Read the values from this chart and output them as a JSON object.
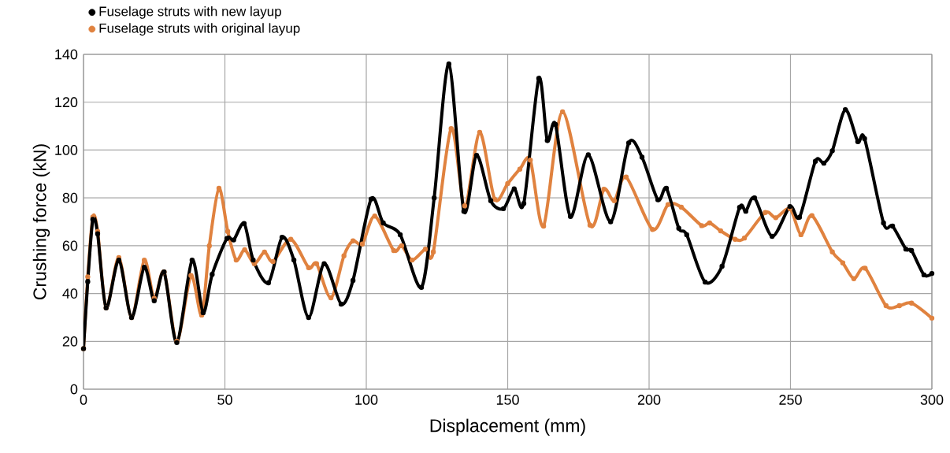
{
  "chart_data": {
    "type": "line",
    "xlabel": "Displacement (mm)",
    "ylabel": "Crushing force (kN)",
    "xlim": [
      0,
      300
    ],
    "ylim": [
      0,
      140
    ],
    "xticks": [
      0,
      50,
      100,
      150,
      200,
      250,
      300
    ],
    "yticks": [
      0,
      20,
      40,
      60,
      80,
      100,
      120,
      140
    ],
    "grid": true,
    "legend": "top left",
    "marker": "circle",
    "line_style": "solid",
    "series": [
      {
        "name": "Fuselage struts with new layup",
        "color": "#000000",
        "x": [
          0,
          1.5,
          3.3,
          5,
          8,
          12.5,
          17,
          21.5,
          25,
          28.5,
          33,
          38.4,
          42.3,
          45.5,
          50.7,
          53.1,
          56.8,
          60,
          65.4,
          70.2,
          74.4,
          79.6,
          85.1,
          91.1,
          95.3,
          101.7,
          106,
          112,
          119.5,
          124,
          129.2,
          134.5,
          139,
          144,
          148.5,
          152.3,
          155.7,
          161,
          164,
          166.9,
          172.2,
          178.5,
          186.4,
          192.8,
          197.5,
          203.1,
          206.1,
          210.5,
          213.3,
          219.8,
          225.8,
          232,
          234.2,
          237.3,
          243.5,
          249.8,
          253.2,
          258.8,
          261.8,
          264.8,
          269.4,
          273.8,
          276.2,
          282.9,
          286.1,
          290.8,
          292.8,
          297.2,
          300
        ],
        "values": [
          17,
          45,
          71,
          65,
          34,
          54,
          30,
          51,
          37,
          49,
          19.5,
          54,
          32,
          48,
          63,
          62.4,
          69.3,
          54,
          44.5,
          63.5,
          54,
          30,
          52.5,
          35.6,
          45.5,
          79.5,
          69.5,
          64.6,
          42.6,
          80,
          136,
          74.4,
          97.8,
          78.8,
          75.5,
          83.8,
          77.7,
          130,
          104,
          110.7,
          72.2,
          98,
          70,
          103,
          97,
          79.2,
          84,
          67.3,
          64.6,
          44.8,
          51.4,
          76,
          74.4,
          80,
          63.9,
          76.4,
          71.9,
          95.3,
          94.5,
          99.7,
          116.9,
          103.5,
          104.8,
          69.5,
          68.2,
          58.6,
          58,
          47.8,
          48.4
        ]
      },
      {
        "name": "Fuselage struts with original layup",
        "color": "#e0823f",
        "x": [
          0,
          1.5,
          3.3,
          5,
          8,
          12.5,
          17,
          21.5,
          25,
          28.5,
          33,
          38,
          41.8,
          44.5,
          47.9,
          51,
          54,
          57,
          60.4,
          64,
          67,
          73.3,
          79.6,
          82.4,
          87.5,
          92.1,
          95.3,
          98.6,
          103,
          109.7,
          112.5,
          116.2,
          120.9,
          123.7,
          130,
          134.8,
          140.1,
          145.4,
          150,
          154.3,
          158,
          162.7,
          169.4,
          179.1,
          184,
          187.7,
          191.9,
          201.2,
          206.7,
          211.4,
          218.6,
          221.4,
          225.3,
          230.4,
          233.7,
          241.1,
          244.8,
          249.8,
          253.7,
          257.6,
          264.8,
          268.5,
          272.4,
          276.4,
          283.8,
          288.5,
          292.8,
          300
        ],
        "values": [
          17,
          47,
          72,
          66,
          34,
          55,
          30,
          54,
          38,
          49,
          20,
          47.5,
          31,
          60,
          84,
          66,
          54,
          58.3,
          52.5,
          57.3,
          53.4,
          62.7,
          50.8,
          52.5,
          38.2,
          55.8,
          62,
          60.7,
          72.4,
          58,
          60,
          54,
          58.6,
          57.4,
          109,
          76.7,
          107.4,
          79.4,
          86,
          92,
          95.8,
          68.2,
          116,
          68.6,
          83.6,
          78.8,
          88.7,
          66.8,
          77.2,
          76.1,
          68.4,
          69.5,
          66.2,
          62.7,
          63.2,
          73.9,
          71.7,
          75.5,
          64.6,
          72.6,
          57.4,
          52.8,
          46.2,
          50.6,
          34.9,
          34.9,
          36,
          29.7
        ]
      }
    ]
  }
}
